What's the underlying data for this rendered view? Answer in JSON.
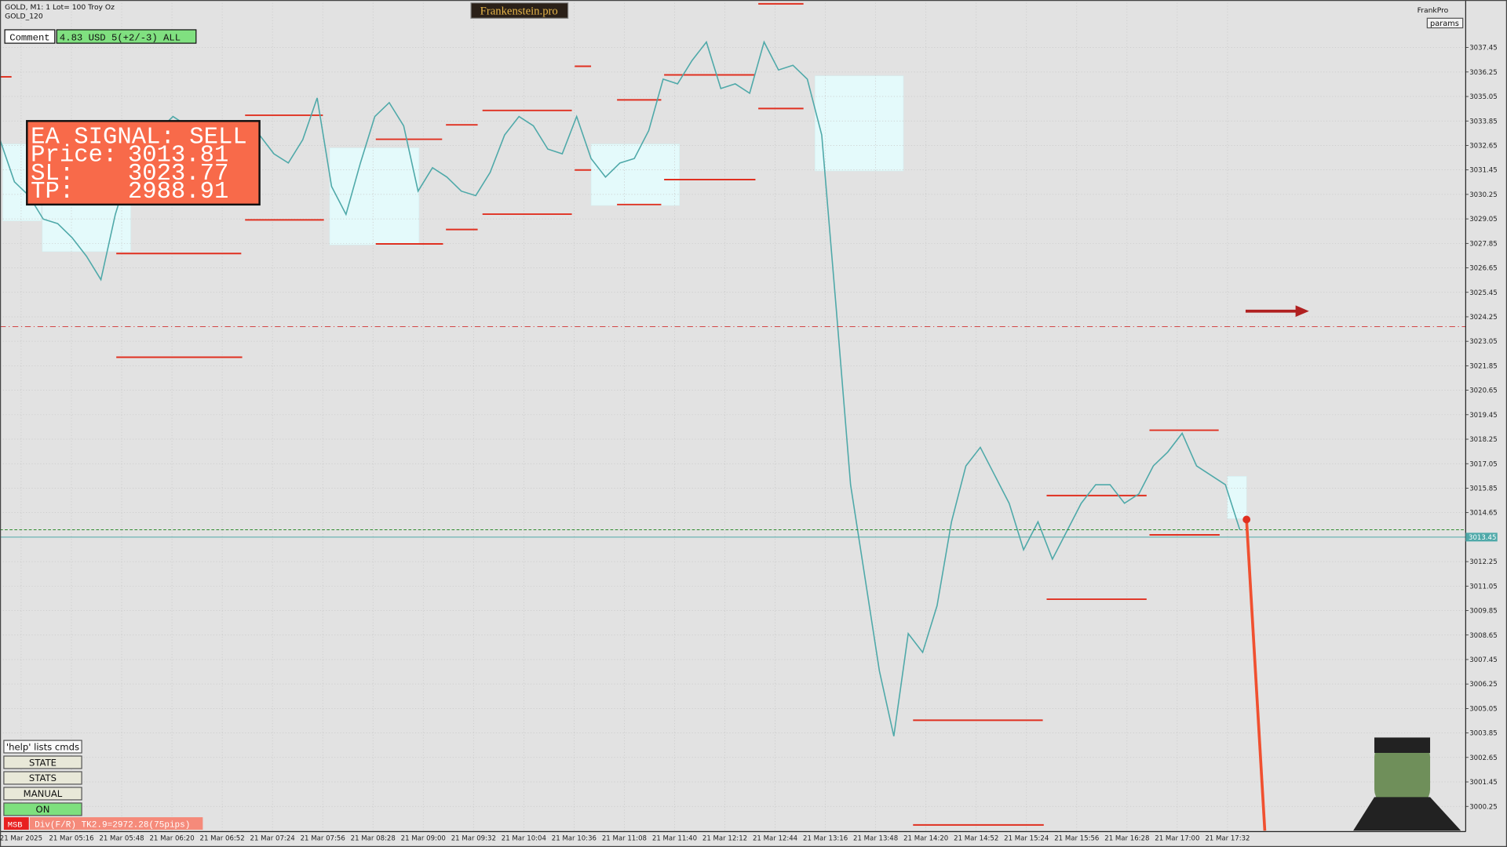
{
  "header": {
    "symbol": "GOLD, M1:  1 Lot= 100 Troy Oz",
    "indicator": "GOLD_120",
    "brand": "Frankenstein.pro",
    "account": "FrankPro",
    "params": "params"
  },
  "comment": {
    "label": "Comment",
    "value": "4.83 USD 5(+2/-3) ALL"
  },
  "signal": {
    "title": "EA SIGNAL: SELL",
    "price_label": "Price:",
    "price": 3013.81,
    "sl_label": "SL:",
    "sl": 3023.77,
    "tp_label": "TP:",
    "tp": 2988.91
  },
  "buttons": [
    "'help' lists cmds",
    "STATE",
    "STATS",
    "MANUAL",
    "ON"
  ],
  "status": {
    "flag": "MSB",
    "text": "Div(F/R) TK2.9=2972.28(75pips)"
  },
  "chart_data": {
    "type": "line",
    "x_labels": [
      "21 Mar 2025",
      "21 Mar 05:16",
      "21 Mar 05:48",
      "21 Mar 06:20",
      "21 Mar 06:52",
      "21 Mar 07:24",
      "21 Mar 07:56",
      "21 Mar 08:28",
      "21 Mar 09:00",
      "21 Mar 09:32",
      "21 Mar 10:04",
      "21 Mar 10:36",
      "21 Mar 11:08",
      "21 Mar 11:40",
      "21 Mar 12:12",
      "21 Mar 12:44",
      "21 Mar 13:16",
      "21 Mar 13:48",
      "21 Mar 14:20",
      "21 Mar 14:52",
      "21 Mar 15:24",
      "21 Mar 15:56",
      "21 Mar 16:28",
      "21 Mar 17:00",
      "21 Mar 17:32"
    ],
    "values": [
      3032.93,
      3030.87,
      3030.19,
      3029.04,
      3028.82,
      3028.13,
      3027.22,
      3026.07,
      3029.27,
      3031.56,
      3032.47,
      3033.38,
      3034.07,
      3033.61,
      3031.33,
      3030.19,
      3031.33,
      3032.93,
      3033.16,
      3032.24,
      3031.79,
      3032.93,
      3034.98,
      3030.64,
      3029.27,
      3031.79,
      3034.07,
      3034.75,
      3033.61,
      3030.41,
      3031.56,
      3031.1,
      3030.41,
      3030.19,
      3031.33,
      3033.16,
      3034.07,
      3033.61,
      3032.47,
      3032.24,
      3034.07,
      3032.01,
      3031.1,
      3031.79,
      3032.01,
      3033.38,
      3035.9,
      3035.67,
      3036.81,
      3037.72,
      3035.44,
      3035.67,
      3035.21,
      3037.72,
      3036.35,
      3036.58,
      3035.9,
      3033.16,
      3024.7,
      3016.02,
      3011.46,
      3006.89,
      3003.69,
      3008.72,
      3007.8,
      3010.09,
      3014.2,
      3016.94,
      3017.85,
      3016.48,
      3015.11,
      3012.83,
      3014.2,
      3012.37,
      3013.74,
      3015.11,
      3016.02,
      3016.02,
      3015.11,
      3015.57,
      3016.94,
      3017.62,
      3018.54,
      3016.94,
      3016.48,
      3016.02,
      3013.81
    ],
    "color": "#4fa9a9",
    "current_price": 3013.45,
    "ylim": [
      2999.06,
      3039.78
    ],
    "yticks": [
      3037.45,
      3036.25,
      3035.05,
      3033.85,
      3032.65,
      3031.45,
      3030.25,
      3029.05,
      3027.85,
      3026.65,
      3025.45,
      3024.25,
      3023.05,
      3021.85,
      3020.65,
      3019.45,
      3018.25,
      3017.05,
      3015.85,
      3014.65,
      3012.25,
      3011.05,
      3009.85,
      3008.65,
      3007.45,
      3006.25,
      3005.05,
      3003.85,
      3002.65,
      3001.45,
      3000.25
    ],
    "grid": true
  }
}
